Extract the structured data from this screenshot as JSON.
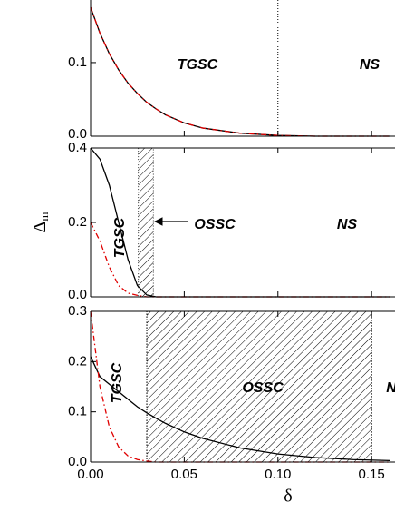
{
  "chart_data": [
    {
      "type": "line",
      "x": [
        0,
        0.005,
        0.01,
        0.015,
        0.02,
        0.025,
        0.03,
        0.035,
        0.04,
        0.05,
        0.06,
        0.08,
        0.1,
        0.12,
        0.14,
        0.16
      ],
      "series": [
        {
          "color": "#000000",
          "dash": "solid",
          "values": [
            0.175,
            0.14,
            0.112,
            0.09,
            0.072,
            0.058,
            0.046,
            0.037,
            0.029,
            0.018,
            0.011,
            0.004,
            0.001,
            0,
            0,
            0
          ]
        },
        {
          "color": "#e00000",
          "dash": "dashdot",
          "values": [
            0.175,
            0.14,
            0.112,
            0.09,
            0.072,
            0.058,
            0.046,
            0.037,
            0.029,
            0.018,
            0.011,
            0.004,
            0.001,
            0,
            0,
            0
          ]
        }
      ],
      "xlim": [
        0,
        0.1625
      ],
      "xticks": [
        {
          "value": 0,
          "label": "0.00"
        },
        {
          "value": 0.05,
          "label": "0.05"
        },
        {
          "value": 0.1,
          "label": "0.10"
        },
        {
          "value": 0.15,
          "label": "0.15"
        }
      ],
      "ylim": [
        0,
        0.185
      ],
      "yticks": [
        {
          "value": 0,
          "label": "0.0"
        },
        0.1
      ],
      "vlines": [
        0.1
      ],
      "regions": [],
      "annotations": [
        "TGSC",
        "NS"
      ]
    },
    {
      "type": "line",
      "x": [
        0,
        0.005,
        0.01,
        0.015,
        0.02,
        0.025,
        0.03,
        0.035,
        0.04,
        0.05,
        0.06,
        0.08,
        0.1,
        0.12,
        0.14,
        0.16
      ],
      "series": [
        {
          "color": "#000000",
          "dash": "solid",
          "values": [
            0.4,
            0.37,
            0.3,
            0.2,
            0.1,
            0.03,
            0.005,
            0,
            0,
            0,
            0,
            0,
            0,
            0,
            0,
            0
          ]
        },
        {
          "color": "#e00000",
          "dash": "dashdot",
          "values": [
            0.2,
            0.15,
            0.08,
            0.03,
            0.01,
            0.004,
            0,
            0,
            0,
            0,
            0,
            0,
            0,
            0,
            0,
            0
          ]
        }
      ],
      "xlim": [
        0,
        0.1625
      ],
      "xticks": [
        {
          "value": 0,
          "label": "0.00"
        },
        {
          "value": 0.05,
          "label": "0.05"
        },
        {
          "value": 0.1,
          "label": "0.10"
        },
        {
          "value": 0.15,
          "label": "0.15"
        }
      ],
      "ylim": [
        0,
        0.4
      ],
      "yticks": [
        {
          "value": 0,
          "label": "0.0"
        },
        0.2,
        0.4
      ],
      "y_label": {
        "symbol": "Δ",
        "subscript": "m"
      },
      "vlines": [],
      "regions": [
        [
          0.0255,
          0.0335
        ]
      ],
      "annotations": [
        "TGSC",
        "OSSC",
        "NS"
      ]
    },
    {
      "type": "line",
      "x": [
        0,
        0.005,
        0.01,
        0.015,
        0.02,
        0.025,
        0.03,
        0.035,
        0.04,
        0.05,
        0.06,
        0.08,
        0.1,
        0.12,
        0.14,
        0.16
      ],
      "series": [
        {
          "color": "#000000",
          "dash": "solid",
          "values": [
            0.21,
            0.17,
            0.155,
            0.14,
            0.125,
            0.11,
            0.098,
            0.087,
            0.077,
            0.06,
            0.047,
            0.028,
            0.016,
            0.009,
            0.005,
            0.003
          ]
        },
        {
          "color": "#e00000",
          "dash": "dashdot",
          "values": [
            0.3,
            0.15,
            0.07,
            0.03,
            0.012,
            0.005,
            0.002,
            0,
            0,
            0,
            0,
            0,
            0,
            0,
            0,
            0
          ]
        }
      ],
      "xlim": [
        0,
        0.1625
      ],
      "xticks": [
        {
          "value": 0,
          "label": "0.00"
        },
        {
          "value": 0.05,
          "label": "0.05"
        },
        {
          "value": 0.1,
          "label": "0.10"
        },
        {
          "value": 0.15,
          "label": "0.15"
        }
      ],
      "ylim": [
        0,
        0.3
      ],
      "yticks": [
        {
          "value": 0,
          "label": "0.0"
        },
        0.1,
        0.2,
        0.3
      ],
      "x_label": "δ",
      "vlines": [
        0.03,
        0.15
      ],
      "regions": [
        [
          0.03,
          0.15
        ]
      ],
      "annotations": [
        "TGSC",
        "OSSC",
        "N"
      ]
    }
  ]
}
